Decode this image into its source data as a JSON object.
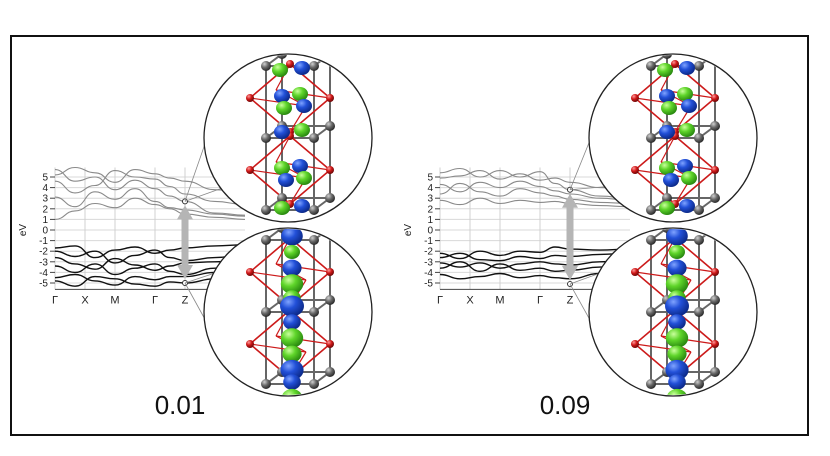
{
  "panels": [
    {
      "value_label": "0.01",
      "axis_unit": "eV",
      "y_ticks": [
        "5",
        "4",
        "3",
        "2",
        "1",
        "0",
        "-1",
        "-2",
        "-3",
        "-4",
        "-5"
      ],
      "k_labels": [
        "Γ",
        "X",
        "M",
        "Γ",
        "Z"
      ]
    },
    {
      "value_label": "0.09",
      "axis_unit": "eV",
      "y_ticks": [
        "5",
        "4",
        "3",
        "2",
        "1",
        "0",
        "-1",
        "-2",
        "-3",
        "-4",
        "-5"
      ],
      "k_labels": [
        "Γ",
        "X",
        "M",
        "Γ",
        "Z"
      ]
    }
  ],
  "colors": {
    "frame": "#111111",
    "conduction_band": "#8a8a8a",
    "valence_band": "#111111",
    "arrow": "#b5b5b5",
    "atom_grey": "#6b6b6b",
    "atom_red": "#cc1a1a",
    "octahedron": "#cc1a1a",
    "orbital_blue": "#1f4fd6",
    "orbital_green": "#55d22a"
  }
}
